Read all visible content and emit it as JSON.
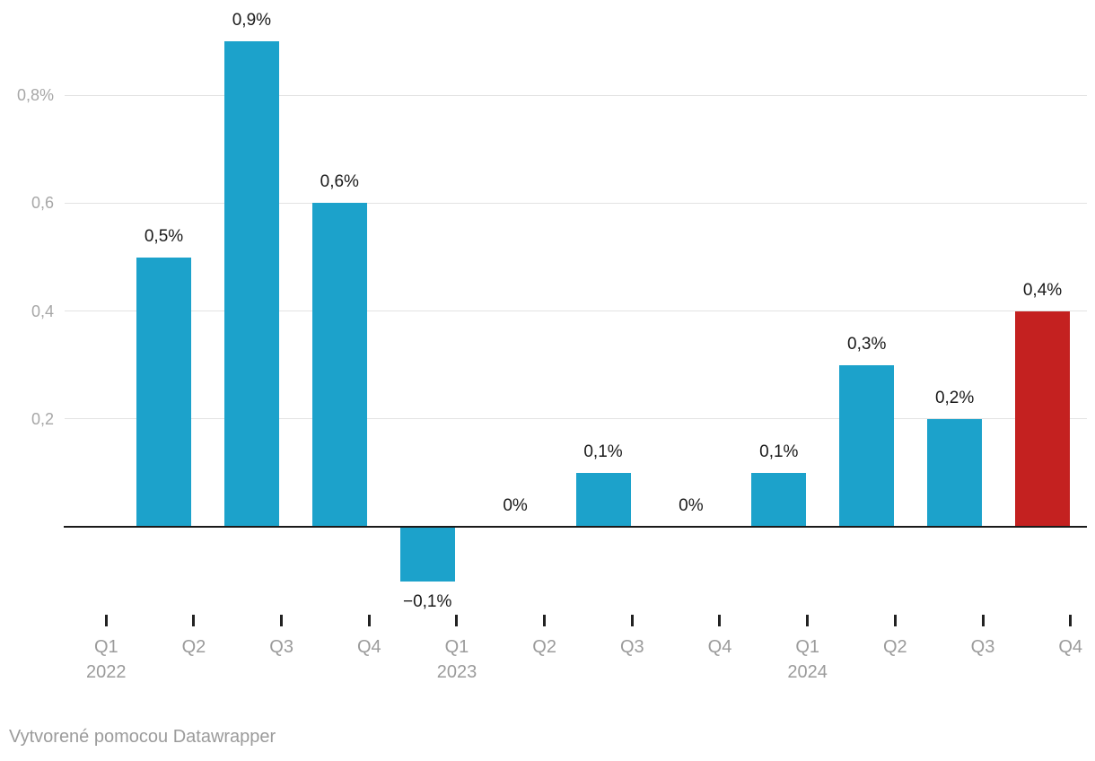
{
  "chart_data": {
    "type": "bar",
    "unit": "%",
    "decimal_separator": ",",
    "title": "",
    "xlabel": "",
    "ylabel": "",
    "grid": true,
    "legend": "none",
    "ylim": [
      -0.2,
      0.95
    ],
    "bars": [
      {
        "period": "Q1 2022",
        "value": 0.5,
        "label": "0,5%"
      },
      {
        "period": "Q2 2022",
        "value": 0.9,
        "label": "0,9%"
      },
      {
        "period": "Q3 2022",
        "value": 0.6,
        "label": "0,6%"
      },
      {
        "period": "Q4 2022",
        "value": -0.1,
        "label": "−0,1%"
      },
      {
        "period": "Q1 2023",
        "value": 0,
        "label": "0%"
      },
      {
        "period": "Q2 2023",
        "value": 0.1,
        "label": "0,1%"
      },
      {
        "period": "Q3 2023",
        "value": 0,
        "label": "0%"
      },
      {
        "period": "Q4 2023",
        "value": 0.1,
        "label": "0,1%"
      },
      {
        "period": "Q1 2024",
        "value": 0.3,
        "label": "0,3%"
      },
      {
        "period": "Q2 2024",
        "value": 0.2,
        "label": "0,2%"
      },
      {
        "period": "Q3 2024",
        "value": 0.4,
        "label": "0,4%",
        "highlight": true
      }
    ],
    "y_axis": {
      "ticks": [
        {
          "value": 0.2,
          "label": "0,2"
        },
        {
          "value": 0.4,
          "label": "0,4"
        },
        {
          "value": 0.6,
          "label": "0,6"
        },
        {
          "value": 0.8,
          "label": "0,8%"
        }
      ]
    },
    "x_axis": {
      "ticks": [
        {
          "quarter": "Q1",
          "year": "2022"
        },
        {
          "quarter": "Q2"
        },
        {
          "quarter": "Q3"
        },
        {
          "quarter": "Q4"
        },
        {
          "quarter": "Q1",
          "year": "2023"
        },
        {
          "quarter": "Q2"
        },
        {
          "quarter": "Q3"
        },
        {
          "quarter": "Q4"
        },
        {
          "quarter": "Q1",
          "year": "2024"
        },
        {
          "quarter": "Q2"
        },
        {
          "quarter": "Q3"
        },
        {
          "quarter": "Q4"
        }
      ]
    },
    "colors": {
      "bar": "#1ca2cb",
      "highlight": "#c42120",
      "value_label": "#1a1a1a",
      "y_axis_label": "#a7a7a7",
      "x_axis_label": "#9b9b9b",
      "gridline": "#e2e2e2",
      "baseline": "#1a1a1a",
      "tick": "#222222",
      "background": "#ffffff"
    }
  },
  "footer": {
    "prefix": "Vytvorené pomocou ",
    "link": "Datawrapper"
  }
}
